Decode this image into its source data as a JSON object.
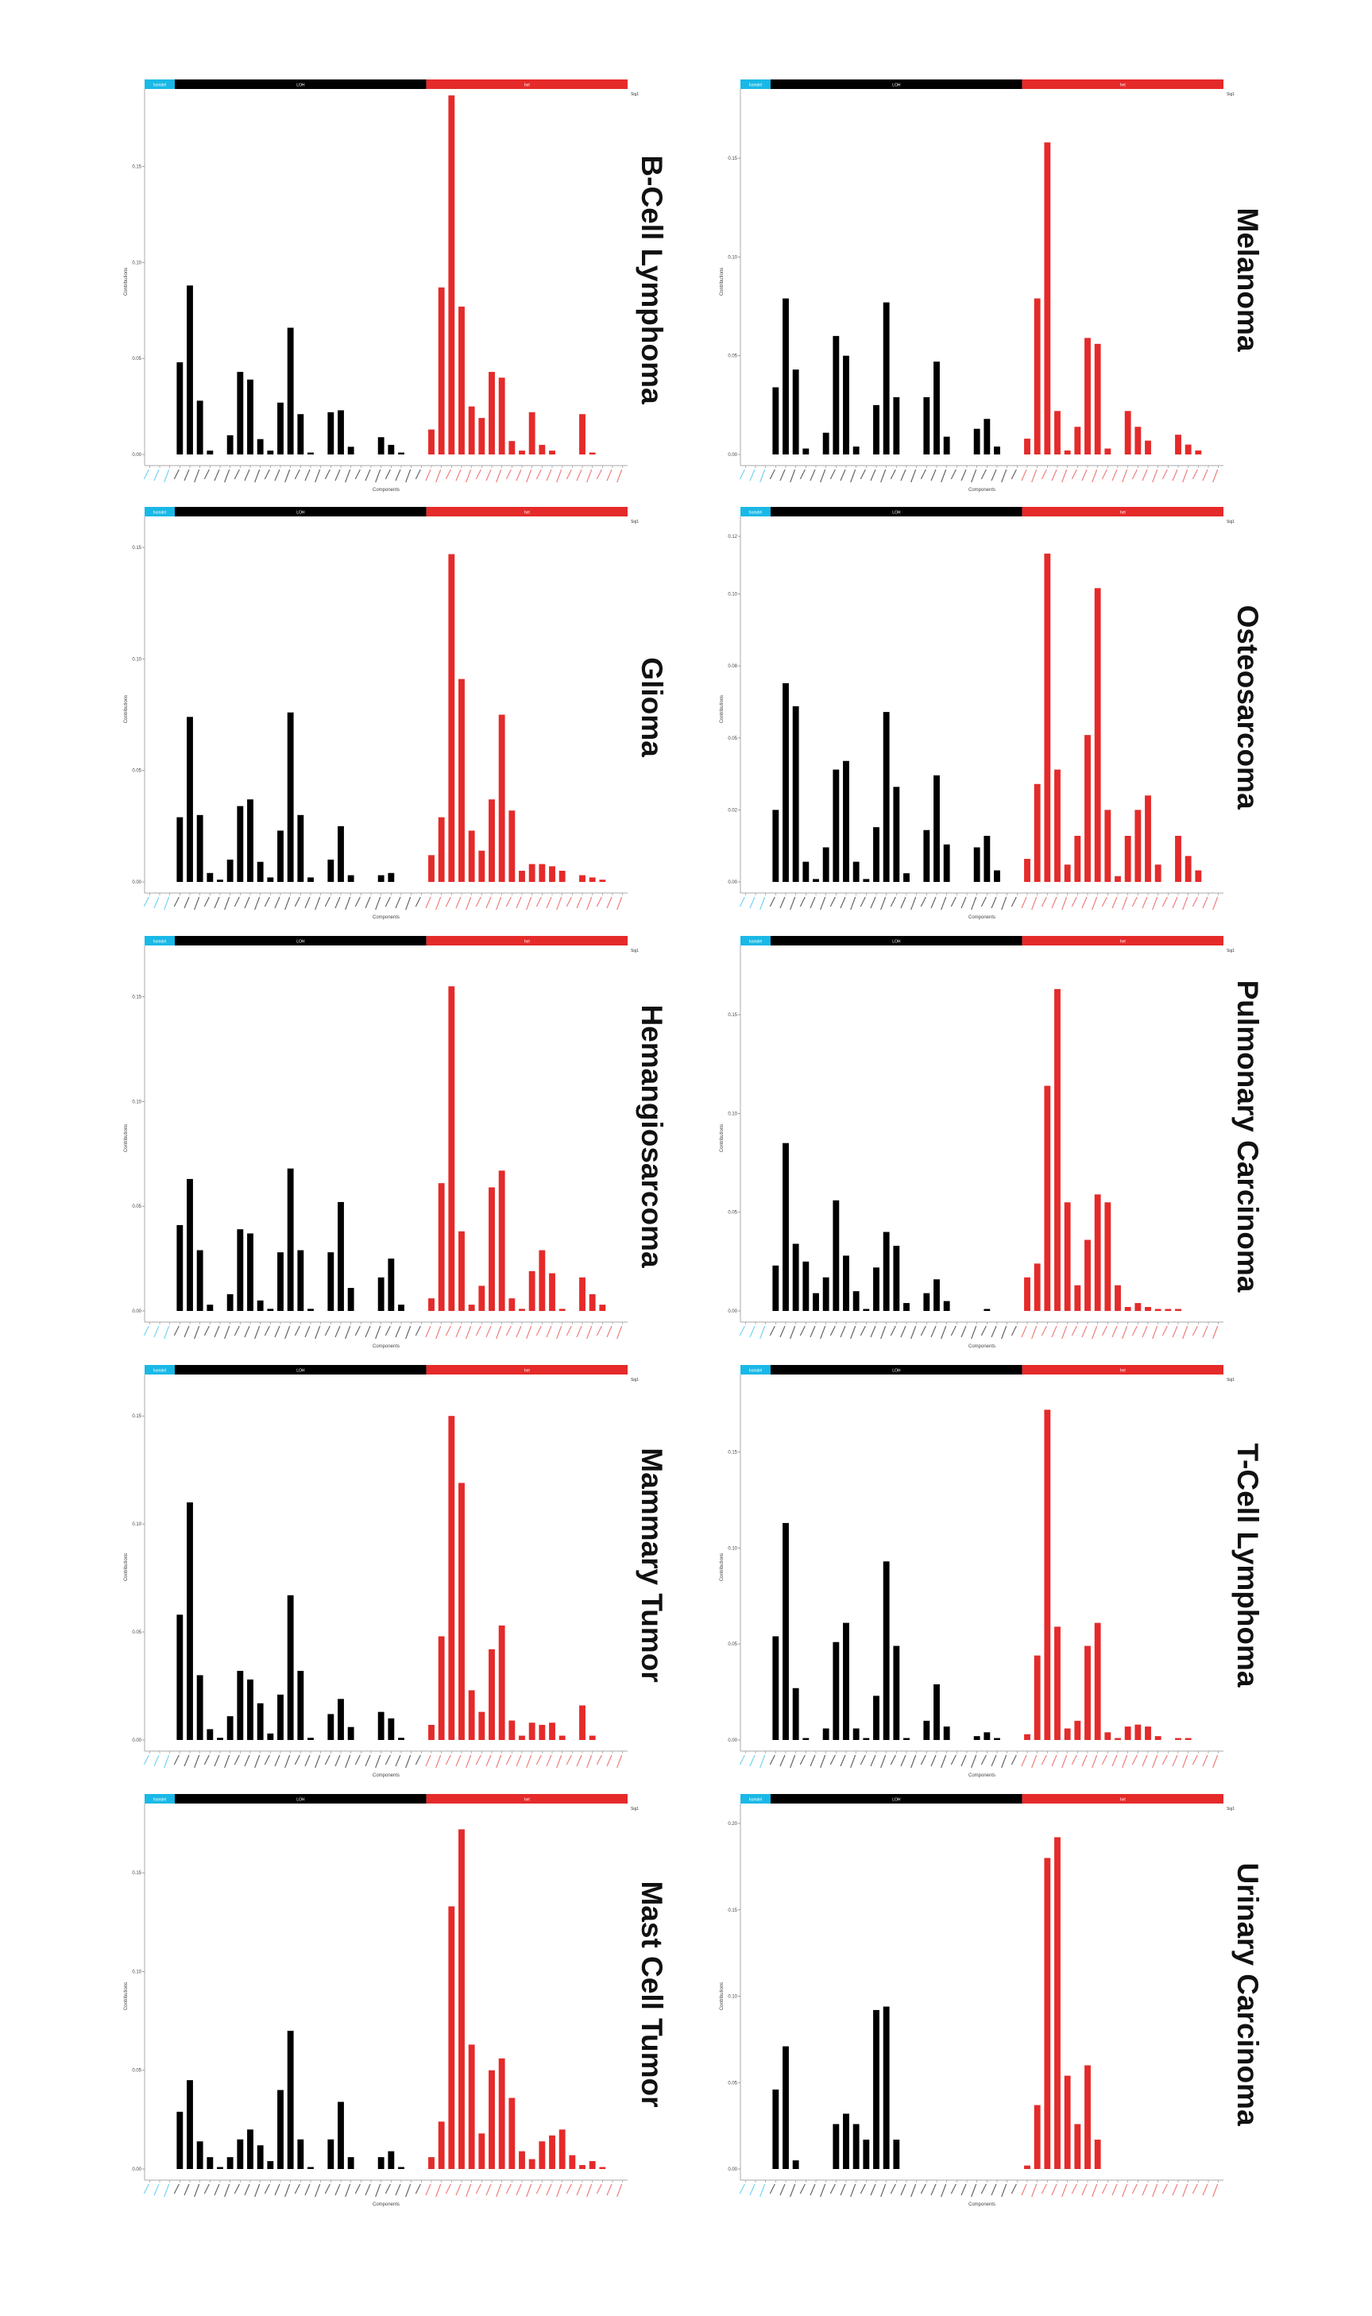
{
  "colors": {
    "homdel": "#1ab8e6",
    "LOH": "#000000",
    "het": "#e52a2a"
  },
  "chart_data": [
    {
      "type": "bar",
      "title": "B-Cell Lymphoma",
      "signature": "Sig1",
      "xlabel": "Components",
      "ylabel": "Contributions",
      "ylim": [
        0,
        0.18
      ],
      "yticks": [
        0,
        0.05,
        0.1,
        0.15
      ],
      "ytick_labels": [
        "0.00",
        "0.05",
        "0.10",
        "0.15"
      ],
      "groups": [
        {
          "name": "homdel",
          "count": 3
        },
        {
          "name": "LOH",
          "count": 25
        },
        {
          "name": "het",
          "count": 20
        }
      ],
      "values": [
        0,
        0,
        0,
        0.048,
        0.088,
        0.028,
        0.002,
        0,
        0.01,
        0.043,
        0.039,
        0.008,
        0.002,
        0.027,
        0.066,
        0.021,
        0.001,
        0,
        0.022,
        0.023,
        0.004,
        0,
        0,
        0.009,
        0.005,
        0.001,
        0,
        0,
        0.013,
        0.087,
        0.187,
        0.077,
        0.025,
        0.019,
        0.043,
        0.04,
        0.007,
        0.002,
        0.022,
        0.005,
        0.002,
        0.0,
        0,
        0.021,
        0.001,
        0,
        0,
        0
      ],
      "position": "row1-left"
    },
    {
      "type": "bar",
      "title": "Melanoma",
      "signature": "Sig1",
      "xlabel": "Components",
      "ylabel": "Contributions",
      "ylim": [
        0,
        0.175
      ],
      "yticks": [
        0,
        0.05,
        0.1,
        0.15
      ],
      "ytick_labels": [
        "0.00",
        "0.05",
        "0.10",
        "0.15"
      ],
      "groups": [
        {
          "name": "homdel",
          "count": 3
        },
        {
          "name": "LOH",
          "count": 25
        },
        {
          "name": "het",
          "count": 20
        }
      ],
      "values": [
        0,
        0,
        0,
        0.034,
        0.079,
        0.043,
        0.003,
        0,
        0.011,
        0.06,
        0.05,
        0.004,
        0.0,
        0.025,
        0.077,
        0.029,
        0.0,
        0,
        0.029,
        0.047,
        0.009,
        0,
        0,
        0.013,
        0.018,
        0.004,
        0,
        0,
        0.008,
        0.079,
        0.158,
        0.022,
        0.002,
        0.014,
        0.059,
        0.056,
        0.003,
        0,
        0.022,
        0.014,
        0.007,
        0.0,
        0,
        0.01,
        0.005,
        0.002,
        0,
        0
      ],
      "position": "row1-right"
    },
    {
      "type": "bar",
      "title": "Glioma",
      "signature": "Sig1",
      "xlabel": "Components",
      "ylabel": "Contributions",
      "ylim": [
        0,
        0.155
      ],
      "yticks": [
        0,
        0.05,
        0.1,
        0.15
      ],
      "ytick_labels": [
        "0.00",
        "0.05",
        "0.10",
        "0.15"
      ],
      "groups": [
        {
          "name": "homdel",
          "count": 3
        },
        {
          "name": "LOH",
          "count": 25
        },
        {
          "name": "het",
          "count": 20
        }
      ],
      "values": [
        0,
        0,
        0,
        0.029,
        0.074,
        0.03,
        0.004,
        0.001,
        0.01,
        0.034,
        0.037,
        0.009,
        0.002,
        0.023,
        0.076,
        0.03,
        0.002,
        0,
        0.01,
        0.025,
        0.003,
        0,
        0,
        0.003,
        0.004,
        0.0,
        0,
        0,
        0.012,
        0.029,
        0.147,
        0.091,
        0.023,
        0.014,
        0.037,
        0.075,
        0.032,
        0.005,
        0.008,
        0.008,
        0.007,
        0.005,
        0,
        0.003,
        0.002,
        0.001,
        0,
        0
      ],
      "position": "row2-left"
    },
    {
      "type": "bar",
      "title": "Osteosarcoma",
      "signature": "Sig1",
      "xlabel": "Components",
      "ylabel": "Contributions",
      "ylim": [
        0,
        0.12
      ],
      "yticks": [
        0,
        0.025,
        0.05,
        0.075,
        0.1,
        0.12
      ],
      "ytick_labels": [
        "0.00",
        "0.02",
        "0.05",
        "0.08",
        "0.10",
        "0.12"
      ],
      "groups": [
        {
          "name": "homdel",
          "count": 3
        },
        {
          "name": "LOH",
          "count": 25
        },
        {
          "name": "het",
          "count": 20
        }
      ],
      "values": [
        0,
        0,
        0,
        0.025,
        0.069,
        0.061,
        0.007,
        0.001,
        0.012,
        0.039,
        0.042,
        0.007,
        0.001,
        0.019,
        0.059,
        0.033,
        0.003,
        0,
        0.018,
        0.037,
        0.013,
        0,
        0,
        0.012,
        0.016,
        0.004,
        0,
        0,
        0.008,
        0.034,
        0.114,
        0.039,
        0.006,
        0.016,
        0.051,
        0.102,
        0.025,
        0.002,
        0.016,
        0.025,
        0.03,
        0.006,
        0,
        0.016,
        0.009,
        0.004,
        0,
        0
      ],
      "position": "row2-right"
    },
    {
      "type": "bar",
      "title": "Hemangiosarcoma",
      "signature": "Sig1",
      "xlabel": "Components",
      "ylabel": "Contributions",
      "ylim": [
        0,
        0.165
      ],
      "yticks": [
        0,
        0.05,
        0.1,
        0.15
      ],
      "ytick_labels": [
        "0.00",
        "0.05",
        "0.10",
        "0.15"
      ],
      "groups": [
        {
          "name": "homdel",
          "count": 3
        },
        {
          "name": "LOH",
          "count": 25
        },
        {
          "name": "het",
          "count": 20
        }
      ],
      "values": [
        0,
        0,
        0,
        0.041,
        0.063,
        0.029,
        0.003,
        0,
        0.008,
        0.039,
        0.037,
        0.005,
        0.001,
        0.028,
        0.068,
        0.029,
        0.001,
        0,
        0.028,
        0.052,
        0.011,
        0,
        0,
        0.016,
        0.025,
        0.003,
        0,
        0,
        0.006,
        0.061,
        0.155,
        0.038,
        0.003,
        0.012,
        0.059,
        0.067,
        0.006,
        0.001,
        0.019,
        0.029,
        0.018,
        0.001,
        0,
        0.016,
        0.008,
        0.003,
        0,
        0
      ],
      "position": "row3-left"
    },
    {
      "type": "bar",
      "title": "Pulmonary Carcinoma",
      "signature": "Sig1",
      "xlabel": "Components",
      "ylabel": "Contributions",
      "ylim": [
        0,
        0.175
      ],
      "yticks": [
        0,
        0.05,
        0.1,
        0.15
      ],
      "ytick_labels": [
        "0.00",
        "0.05",
        "0.10",
        "0.15"
      ],
      "groups": [
        {
          "name": "homdel",
          "count": 3
        },
        {
          "name": "LOH",
          "count": 25
        },
        {
          "name": "het",
          "count": 20
        }
      ],
      "values": [
        0,
        0,
        0,
        0.023,
        0.085,
        0.034,
        0.025,
        0.009,
        0.017,
        0.056,
        0.028,
        0.01,
        0.001,
        0.022,
        0.04,
        0.033,
        0.004,
        0,
        0.009,
        0.016,
        0.005,
        0,
        0,
        0.0,
        0.001,
        0.0,
        0,
        0,
        0.017,
        0.024,
        0.114,
        0.163,
        0.055,
        0.013,
        0.036,
        0.059,
        0.055,
        0.013,
        0.002,
        0.004,
        0.002,
        0.001,
        0.001,
        0.001,
        0,
        0,
        0,
        0
      ],
      "position": "row3-right"
    },
    {
      "type": "bar",
      "title": "Mammary Tumor",
      "signature": "Sig1",
      "xlabel": "Components",
      "ylabel": "Contributions",
      "ylim": [
        0,
        0.16
      ],
      "yticks": [
        0,
        0.05,
        0.1,
        0.15
      ],
      "ytick_labels": [
        "0.00",
        "0.05",
        "0.10",
        "0.15"
      ],
      "groups": [
        {
          "name": "homdel",
          "count": 3
        },
        {
          "name": "LOH",
          "count": 25
        },
        {
          "name": "het",
          "count": 20
        }
      ],
      "values": [
        0,
        0,
        0,
        0.058,
        0.11,
        0.03,
        0.005,
        0.001,
        0.011,
        0.032,
        0.028,
        0.017,
        0.003,
        0.021,
        0.067,
        0.032,
        0.001,
        0,
        0.012,
        0.019,
        0.006,
        0,
        0,
        0.013,
        0.01,
        0.001,
        0,
        0,
        0.007,
        0.048,
        0.15,
        0.119,
        0.023,
        0.013,
        0.042,
        0.053,
        0.009,
        0.002,
        0.008,
        0.007,
        0.008,
        0.002,
        0,
        0.016,
        0.002,
        0,
        0,
        0
      ],
      "position": "row4-left"
    },
    {
      "type": "bar",
      "title": "T-Cell Lymphoma",
      "signature": "Sig1",
      "xlabel": "Components",
      "ylabel": "Contributions",
      "ylim": [
        0,
        0.18
      ],
      "yticks": [
        0,
        0.05,
        0.1,
        0.15
      ],
      "ytick_labels": [
        "0.00",
        "0.05",
        "0.10",
        "0.15"
      ],
      "groups": [
        {
          "name": "homdel",
          "count": 3
        },
        {
          "name": "LOH",
          "count": 25
        },
        {
          "name": "het",
          "count": 20
        }
      ],
      "values": [
        0,
        0,
        0,
        0.054,
        0.113,
        0.027,
        0.001,
        0,
        0.006,
        0.051,
        0.061,
        0.006,
        0.001,
        0.023,
        0.093,
        0.049,
        0.001,
        0,
        0.01,
        0.029,
        0.007,
        0,
        0,
        0.002,
        0.004,
        0.001,
        0,
        0,
        0.003,
        0.044,
        0.172,
        0.059,
        0.006,
        0.01,
        0.049,
        0.061,
        0.004,
        0.001,
        0.007,
        0.008,
        0.007,
        0.002,
        0,
        0.001,
        0.001,
        0,
        0,
        0
      ],
      "position": "row4-right"
    },
    {
      "type": "bar",
      "title": "Mast Cell Tumor",
      "signature": "Sig1",
      "xlabel": "Components",
      "ylabel": "Contributions",
      "ylim": [
        0,
        0.175
      ],
      "yticks": [
        0,
        0.05,
        0.1,
        0.15
      ],
      "ytick_labels": [
        "0.00",
        "0.05",
        "0.10",
        "0.15"
      ],
      "groups": [
        {
          "name": "homdel",
          "count": 3
        },
        {
          "name": "LOH",
          "count": 25
        },
        {
          "name": "het",
          "count": 20
        }
      ],
      "values": [
        0,
        0,
        0,
        0.029,
        0.045,
        0.014,
        0.006,
        0.001,
        0.006,
        0.015,
        0.02,
        0.012,
        0.004,
        0.04,
        0.07,
        0.015,
        0.001,
        0,
        0.015,
        0.034,
        0.006,
        0,
        0,
        0.006,
        0.009,
        0.001,
        0,
        0,
        0.006,
        0.024,
        0.133,
        0.172,
        0.063,
        0.018,
        0.05,
        0.056,
        0.036,
        0.009,
        0.005,
        0.014,
        0.017,
        0.02,
        0.007,
        0.002,
        0.004,
        0.001,
        0,
        0
      ],
      "position": "row5-left"
    },
    {
      "type": "bar",
      "title": "Urinary Carcinoma",
      "signature": "Sig1",
      "xlabel": "Components",
      "ylabel": "Contributions",
      "ylim": [
        0,
        0.2
      ],
      "yticks": [
        0,
        0.05,
        0.1,
        0.15,
        0.2
      ],
      "ytick_labels": [
        "0.00",
        "0.05",
        "0.10",
        "0.15",
        "0.20"
      ],
      "groups": [
        {
          "name": "homdel",
          "count": 3
        },
        {
          "name": "LOH",
          "count": 25
        },
        {
          "name": "het",
          "count": 20
        }
      ],
      "values": [
        0,
        0,
        0,
        0.046,
        0.071,
        0.005,
        0.0,
        0,
        0,
        0.026,
        0.032,
        0.026,
        0.017,
        0.092,
        0.094,
        0.017,
        0,
        0,
        0,
        0,
        0,
        0,
        0,
        0,
        0,
        0,
        0,
        0,
        0.002,
        0.037,
        0.18,
        0.192,
        0.054,
        0.026,
        0.06,
        0.017,
        0,
        0,
        0,
        0,
        0,
        0,
        0,
        0,
        0,
        0,
        0,
        0
      ],
      "position": "row5-right"
    }
  ]
}
